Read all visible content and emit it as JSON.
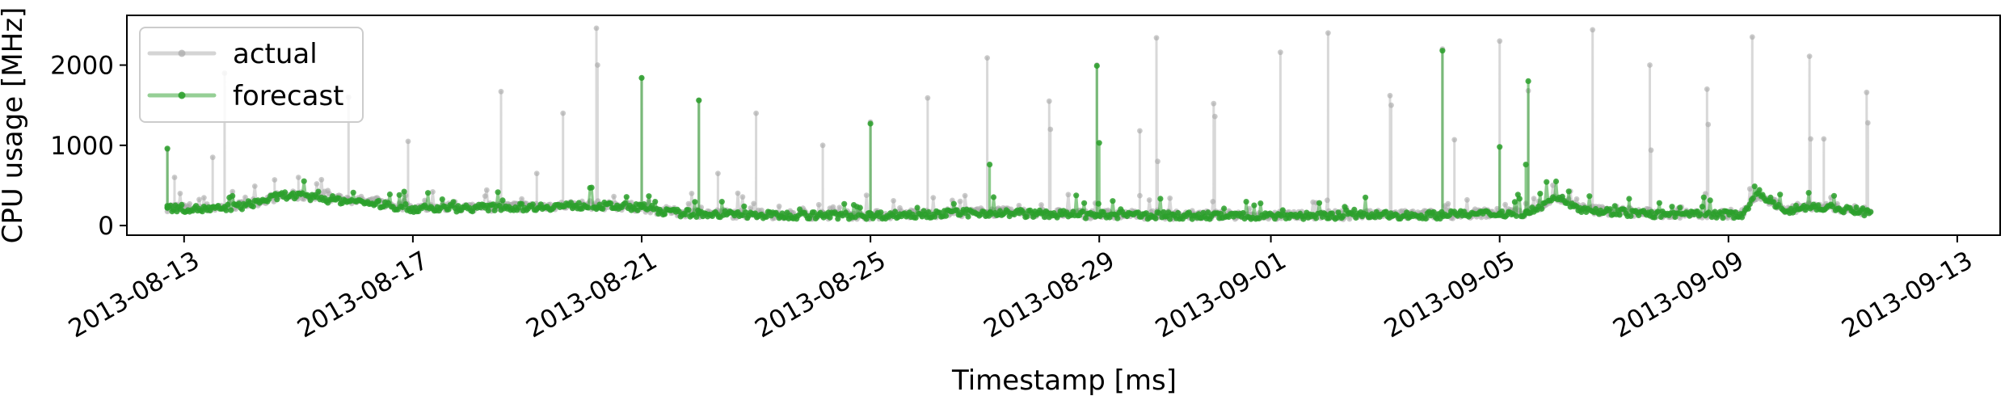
{
  "chart_data": {
    "type": "line",
    "title": "",
    "xlabel": "Timestamp [ms]",
    "ylabel": "CPU usage [MHz]",
    "x_range": [
      "2013-08-12T00:00:00",
      "2013-09-13T18:00:00"
    ],
    "ylim": [
      -120,
      2620
    ],
    "x_ticks": [
      "2013-08-13",
      "2013-08-17",
      "2013-08-21",
      "2013-08-25",
      "2013-08-29",
      "2013-09-01",
      "2013-09-05",
      "2013-09-09",
      "2013-09-13"
    ],
    "y_ticks": [
      0,
      1000,
      2000
    ],
    "grid": false,
    "legend_position": "upper-left",
    "series": [
      {
        "name": "actual",
        "color": "#a9a9a9",
        "baseline": [
          [
            "2013-08-12T17:00:00",
            230
          ],
          [
            "2013-08-13T12:00:00",
            220
          ],
          [
            "2013-08-14T00:00:00",
            250
          ],
          [
            "2013-08-14T18:00:00",
            380
          ],
          [
            "2013-08-15T12:00:00",
            350
          ],
          [
            "2013-08-16T06:00:00",
            300
          ],
          [
            "2013-08-17T00:00:00",
            220
          ],
          [
            "2013-08-18T00:00:00",
            230
          ],
          [
            "2013-08-19T00:00:00",
            240
          ],
          [
            "2013-08-20T00:00:00",
            260
          ],
          [
            "2013-08-21T00:00:00",
            230
          ],
          [
            "2013-08-21T12:00:00",
            170
          ],
          [
            "2013-08-23T00:00:00",
            140
          ],
          [
            "2013-08-25T00:00:00",
            130
          ],
          [
            "2013-08-27T00:00:00",
            170
          ],
          [
            "2013-08-29T00:00:00",
            140
          ],
          [
            "2013-08-31T00:00:00",
            130
          ],
          [
            "2013-09-02T00:00:00",
            130
          ],
          [
            "2013-09-04T00:00:00",
            140
          ],
          [
            "2013-09-05T12:00:00",
            170
          ],
          [
            "2013-09-06T00:00:00",
            350
          ],
          [
            "2013-09-06T12:00:00",
            200
          ],
          [
            "2013-09-08T00:00:00",
            140
          ],
          [
            "2013-09-09T06:00:00",
            150
          ],
          [
            "2013-09-09T12:00:00",
            380
          ],
          [
            "2013-09-10T00:00:00",
            200
          ],
          [
            "2013-09-10T12:00:00",
            250
          ],
          [
            "2013-09-11T12:00:00",
            170
          ]
        ],
        "spikes": [
          [
            "2013-08-12T17:00:00",
            950
          ],
          [
            "2013-08-12T20:00:00",
            600
          ],
          [
            "2013-08-13T12:00:00",
            850
          ],
          [
            "2013-08-13T17:00:00",
            1900
          ],
          [
            "2013-08-14T14:00:00",
            570
          ],
          [
            "2013-08-15T00:00:00",
            600
          ],
          [
            "2013-08-15T21:00:00",
            1600
          ],
          [
            "2013-08-16T22:00:00",
            1050
          ],
          [
            "2013-08-18T13:00:00",
            1670
          ],
          [
            "2013-08-19T04:00:00",
            650
          ],
          [
            "2013-08-19T15:00:00",
            1400
          ],
          [
            "2013-08-20T05:00:00",
            2460
          ],
          [
            "2013-08-20T05:30:00",
            2000
          ],
          [
            "2013-08-21T00:00:00",
            1840
          ],
          [
            "2013-08-22T00:00:00",
            1560
          ],
          [
            "2013-08-22T08:00:00",
            650
          ],
          [
            "2013-08-23T00:00:00",
            1400
          ],
          [
            "2013-08-24T04:00:00",
            1000
          ],
          [
            "2013-08-25T00:00:00",
            1290
          ],
          [
            "2013-08-26T00:00:00",
            1590
          ],
          [
            "2013-08-27T01:00:00",
            2090
          ],
          [
            "2013-08-28T03:00:00",
            1550
          ],
          [
            "2013-08-28T03:30:00",
            1200
          ],
          [
            "2013-08-28T23:00:00",
            2000
          ],
          [
            "2013-08-29T17:00:00",
            1180
          ],
          [
            "2013-08-30T00:00:00",
            2340
          ],
          [
            "2013-08-30T00:30:00",
            800
          ],
          [
            "2013-08-31T00:00:00",
            1520
          ],
          [
            "2013-08-31T00:30:00",
            1360
          ],
          [
            "2013-09-01T04:00:00",
            2160
          ],
          [
            "2013-09-02T00:00:00",
            2400
          ],
          [
            "2013-09-03T02:00:00",
            1620
          ],
          [
            "2013-09-03T02:30:00",
            1500
          ],
          [
            "2013-09-04T00:00:00",
            2200
          ],
          [
            "2013-09-04T05:00:00",
            1070
          ],
          [
            "2013-09-05T00:00:00",
            2300
          ],
          [
            "2013-09-05T12:00:00",
            1680
          ],
          [
            "2013-09-06T15:00:00",
            2440
          ],
          [
            "2013-09-07T15:00:00",
            2000
          ],
          [
            "2013-09-07T15:30:00",
            940
          ],
          [
            "2013-09-08T15:00:00",
            1700
          ],
          [
            "2013-09-08T15:30:00",
            1260
          ],
          [
            "2013-09-09T10:00:00",
            2350
          ],
          [
            "2013-09-10T10:00:00",
            2110
          ],
          [
            "2013-09-10T10:30:00",
            1080
          ],
          [
            "2013-09-10T16:00:00",
            1080
          ],
          [
            "2013-09-11T10:00:00",
            1660
          ],
          [
            "2013-09-11T10:30:00",
            1280
          ]
        ]
      },
      {
        "name": "forecast",
        "color": "#2ca02c",
        "baseline": [
          [
            "2013-08-12T17:00:00",
            220
          ],
          [
            "2013-08-13T12:00:00",
            200
          ],
          [
            "2013-08-14T00:00:00",
            240
          ],
          [
            "2013-08-14T18:00:00",
            380
          ],
          [
            "2013-08-15T12:00:00",
            330
          ],
          [
            "2013-08-16T06:00:00",
            280
          ],
          [
            "2013-08-17T00:00:00",
            210
          ],
          [
            "2013-08-18T00:00:00",
            220
          ],
          [
            "2013-08-19T00:00:00",
            230
          ],
          [
            "2013-08-20T00:00:00",
            250
          ],
          [
            "2013-08-21T00:00:00",
            230
          ],
          [
            "2013-08-21T12:00:00",
            160
          ],
          [
            "2013-08-23T00:00:00",
            130
          ],
          [
            "2013-08-25T00:00:00",
            125
          ],
          [
            "2013-08-27T00:00:00",
            160
          ],
          [
            "2013-08-29T00:00:00",
            130
          ],
          [
            "2013-08-31T00:00:00",
            120
          ],
          [
            "2013-09-02T00:00:00",
            125
          ],
          [
            "2013-09-04T00:00:00",
            130
          ],
          [
            "2013-09-05T12:00:00",
            160
          ],
          [
            "2013-09-06T00:00:00",
            350
          ],
          [
            "2013-09-06T12:00:00",
            190
          ],
          [
            "2013-09-08T00:00:00",
            130
          ],
          [
            "2013-09-09T06:00:00",
            140
          ],
          [
            "2013-09-09T12:00:00",
            420
          ],
          [
            "2013-09-10T00:00:00",
            190
          ],
          [
            "2013-09-10T12:00:00",
            240
          ],
          [
            "2013-09-11T12:00:00",
            160
          ]
        ],
        "spikes": [
          [
            "2013-08-12T17:00:00",
            960
          ],
          [
            "2013-08-21T00:00:00",
            1840
          ],
          [
            "2013-08-22T00:00:00",
            1560
          ],
          [
            "2013-08-25T00:00:00",
            1270
          ],
          [
            "2013-08-27T02:00:00",
            760
          ],
          [
            "2013-08-28T23:00:00",
            1990
          ],
          [
            "2013-08-29T00:00:00",
            1030
          ],
          [
            "2013-09-04T00:00:00",
            2180
          ],
          [
            "2013-09-05T00:00:00",
            980
          ],
          [
            "2013-09-05T12:00:00",
            1800
          ],
          [
            "2013-09-05T11:00:00",
            760
          ]
        ]
      }
    ]
  }
}
